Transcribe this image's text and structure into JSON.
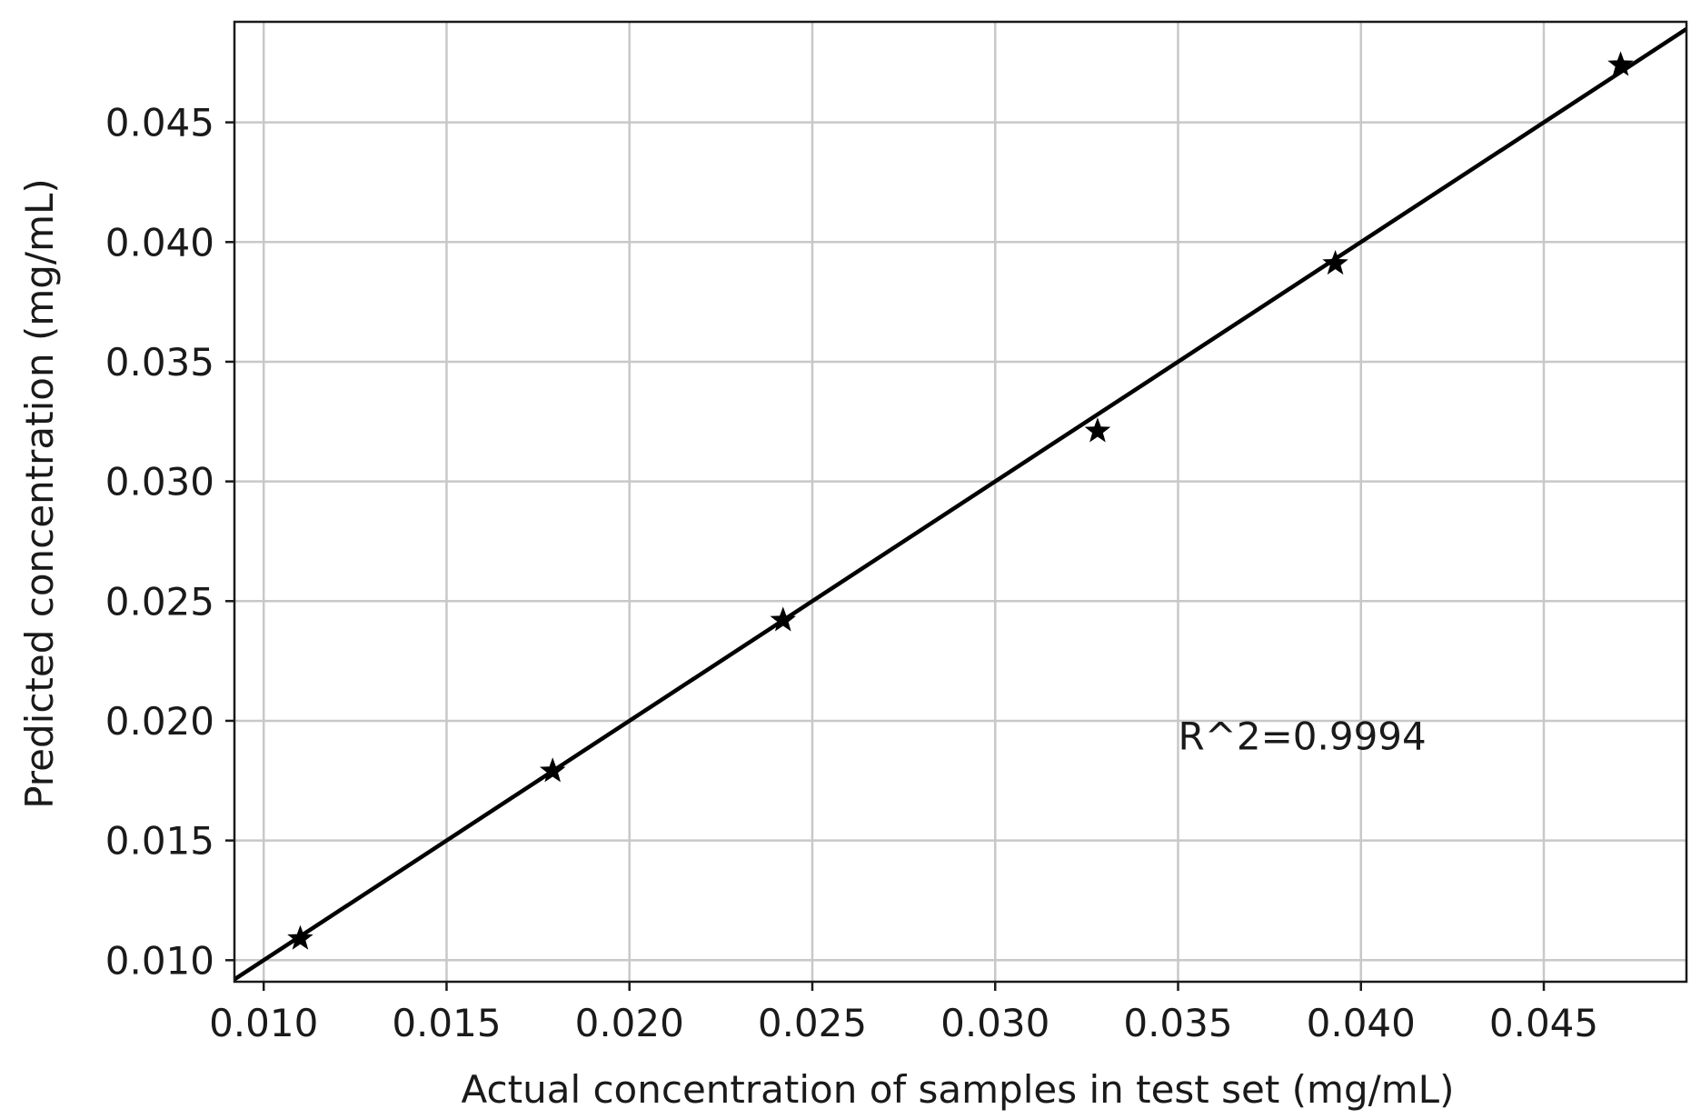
{
  "chart_data": {
    "type": "scatter",
    "xlabel": "Actual concentration of samples in test set (mg/mL)",
    "ylabel": "Predicted concentration (mg/mL)",
    "xlim": [
      0.0092,
      0.0489
    ],
    "ylim": [
      0.0091,
      0.0492
    ],
    "xticks": [
      0.01,
      0.015,
      0.02,
      0.025,
      0.03,
      0.035,
      0.04,
      0.045
    ],
    "yticks": [
      0.01,
      0.015,
      0.02,
      0.025,
      0.03,
      0.035,
      0.04,
      0.045
    ],
    "xtick_labels": [
      "0.010",
      "0.015",
      "0.020",
      "0.025",
      "0.030",
      "0.035",
      "0.040",
      "0.045"
    ],
    "ytick_labels": [
      "0.010",
      "0.015",
      "0.020",
      "0.025",
      "0.030",
      "0.035",
      "0.040",
      "0.045"
    ],
    "grid": true,
    "series": [
      {
        "marker": "star",
        "color": "#000000",
        "x": [
          0.011,
          0.0179,
          0.0242,
          0.0328,
          0.0393,
          0.0471
        ],
        "y": [
          0.0109,
          0.0179,
          0.0242,
          0.0321,
          0.0391,
          0.0474
        ]
      }
    ],
    "fit_line": {
      "slope": 1,
      "intercept": 0,
      "color": "#000000"
    },
    "annotations": [
      {
        "text": "R^2=0.9994",
        "x": 0.035,
        "y": 0.0188
      }
    ]
  }
}
